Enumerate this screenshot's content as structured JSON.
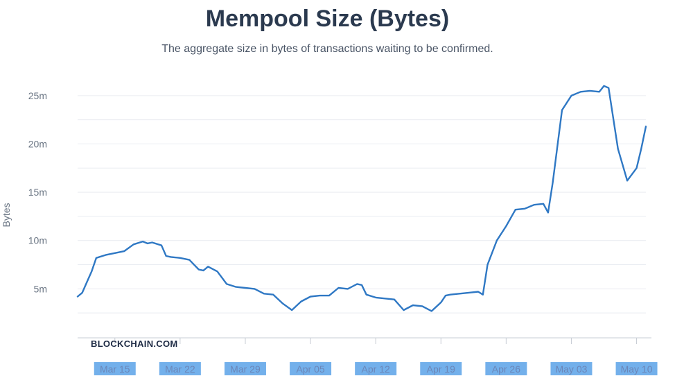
{
  "title": "Mempool Size (Bytes)",
  "subtitle": "The aggregate size in bytes of transactions waiting to be confirmed.",
  "brand": "BLOCKCHAIN.COM",
  "colors": {
    "line": "#2f78c4",
    "grid": "#e9ecf1",
    "axis": "#c7ccd4",
    "tick_label_bg": "#5aa2e8"
  },
  "chart_data": {
    "type": "line",
    "title": "Mempool Size (Bytes)",
    "subtitle": "The aggregate size in bytes of transactions waiting to be confirmed.",
    "ylabel": "Bytes",
    "xlabel": "",
    "ylim": [
      0,
      27000000
    ],
    "grid": true,
    "y_ticks": [
      {
        "value": 5000000,
        "label": "5m"
      },
      {
        "value": 10000000,
        "label": "10m"
      },
      {
        "value": 15000000,
        "label": "15m"
      },
      {
        "value": 20000000,
        "label": "20m"
      },
      {
        "value": 25000000,
        "label": "25m"
      }
    ],
    "x_ticks": [
      {
        "date": "2021-03-15",
        "label": "Mar 15"
      },
      {
        "date": "2021-03-22",
        "label": "Mar 22"
      },
      {
        "date": "2021-03-29",
        "label": "Mar 29"
      },
      {
        "date": "2021-04-05",
        "label": "Apr 05"
      },
      {
        "date": "2021-04-12",
        "label": "Apr 12"
      },
      {
        "date": "2021-04-19",
        "label": "Apr 19"
      },
      {
        "date": "2021-04-26",
        "label": "Apr 26"
      },
      {
        "date": "2021-05-03",
        "label": "May 03"
      },
      {
        "date": "2021-05-10",
        "label": "May 10"
      }
    ],
    "series": [
      {
        "values": [
          [
            "2021-03-11",
            4200000
          ],
          [
            "2021-03-11T12:00",
            4600000
          ],
          [
            "2021-03-12",
            5700000
          ],
          [
            "2021-03-12T12:00",
            6800000
          ],
          [
            "2021-03-13",
            8200000
          ],
          [
            "2021-03-14",
            8500000
          ],
          [
            "2021-03-15",
            8700000
          ],
          [
            "2021-03-16",
            8900000
          ],
          [
            "2021-03-17",
            9600000
          ],
          [
            "2021-03-18",
            9900000
          ],
          [
            "2021-03-18T12:00",
            9700000
          ],
          [
            "2021-03-19",
            9800000
          ],
          [
            "2021-03-20",
            9500000
          ],
          [
            "2021-03-20T12:00",
            8400000
          ],
          [
            "2021-03-21",
            8300000
          ],
          [
            "2021-03-22",
            8200000
          ],
          [
            "2021-03-23",
            8000000
          ],
          [
            "2021-03-24",
            7000000
          ],
          [
            "2021-03-24T12:00",
            6900000
          ],
          [
            "2021-03-25",
            7300000
          ],
          [
            "2021-03-26",
            6800000
          ],
          [
            "2021-03-27",
            5500000
          ],
          [
            "2021-03-28",
            5200000
          ],
          [
            "2021-03-29",
            5100000
          ],
          [
            "2021-03-30",
            5000000
          ],
          [
            "2021-03-31",
            4500000
          ],
          [
            "2021-04-01",
            4400000
          ],
          [
            "2021-04-02",
            3500000
          ],
          [
            "2021-04-03",
            2800000
          ],
          [
            "2021-04-04",
            3700000
          ],
          [
            "2021-04-05",
            4200000
          ],
          [
            "2021-04-06",
            4300000
          ],
          [
            "2021-04-07",
            4300000
          ],
          [
            "2021-04-08",
            5100000
          ],
          [
            "2021-04-09",
            5000000
          ],
          [
            "2021-04-10",
            5500000
          ],
          [
            "2021-04-10T12:00",
            5400000
          ],
          [
            "2021-04-11",
            4400000
          ],
          [
            "2021-04-12",
            4100000
          ],
          [
            "2021-04-13",
            4000000
          ],
          [
            "2021-04-14",
            3900000
          ],
          [
            "2021-04-15",
            2800000
          ],
          [
            "2021-04-16",
            3300000
          ],
          [
            "2021-04-17",
            3200000
          ],
          [
            "2021-04-18",
            2700000
          ],
          [
            "2021-04-19",
            3600000
          ],
          [
            "2021-04-19T12:00",
            4300000
          ],
          [
            "2021-04-20",
            4400000
          ],
          [
            "2021-04-21",
            4500000
          ],
          [
            "2021-04-22",
            4600000
          ],
          [
            "2021-04-23",
            4700000
          ],
          [
            "2021-04-23T12:00",
            4400000
          ],
          [
            "2021-04-24",
            7500000
          ],
          [
            "2021-04-25",
            10000000
          ],
          [
            "2021-04-26",
            11500000
          ],
          [
            "2021-04-27",
            13200000
          ],
          [
            "2021-04-28",
            13300000
          ],
          [
            "2021-04-29",
            13700000
          ],
          [
            "2021-04-30",
            13800000
          ],
          [
            "2021-04-30T12:00",
            12900000
          ],
          [
            "2021-05-01",
            16000000
          ],
          [
            "2021-05-02",
            23500000
          ],
          [
            "2021-05-03",
            25000000
          ],
          [
            "2021-05-04",
            25400000
          ],
          [
            "2021-05-05",
            25500000
          ],
          [
            "2021-05-06",
            25400000
          ],
          [
            "2021-05-06T12:00",
            26000000
          ],
          [
            "2021-05-07",
            25800000
          ],
          [
            "2021-05-08",
            19500000
          ],
          [
            "2021-05-09",
            16200000
          ],
          [
            "2021-05-10",
            17500000
          ],
          [
            "2021-05-10T12:00",
            19500000
          ],
          [
            "2021-05-11",
            21800000
          ]
        ]
      }
    ]
  }
}
